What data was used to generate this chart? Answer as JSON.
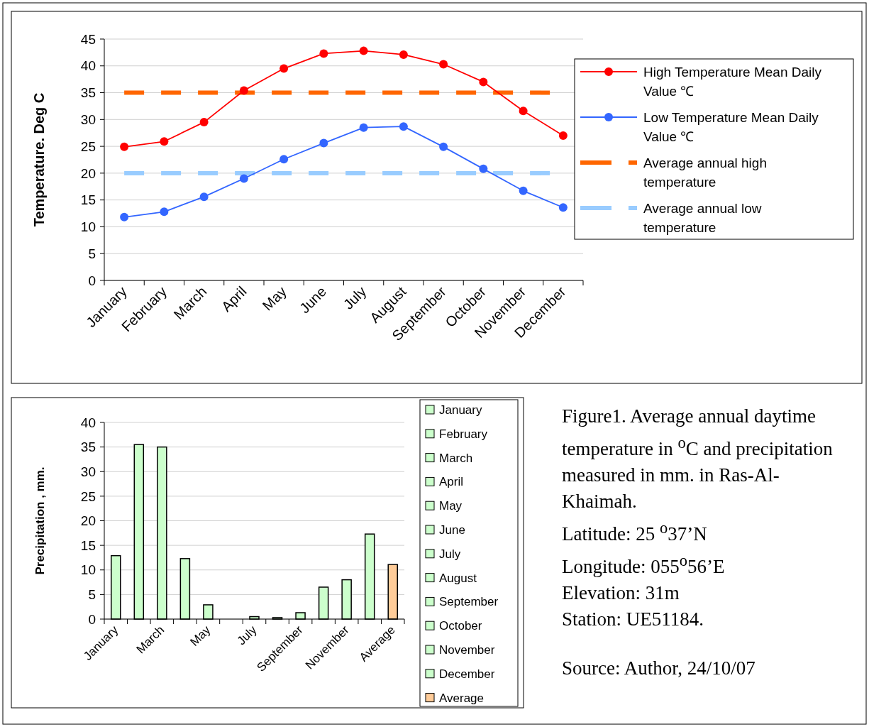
{
  "chart_data": [
    {
      "type": "line",
      "ylabel": "Temperature. Deg C",
      "categories": [
        "January",
        "February",
        "March",
        "April",
        "May",
        "June",
        "July",
        "August",
        "September",
        "October",
        "November",
        "December"
      ],
      "ylim": [
        0,
        45
      ],
      "yticks": [
        0,
        5,
        10,
        15,
        20,
        25,
        30,
        35,
        40,
        45
      ],
      "grid": "y",
      "legend": "right",
      "marker": "circle",
      "series": [
        {
          "name": "High Temperature Mean Daily Value  ℃",
          "color": "#ff0000",
          "values": [
            24.9,
            25.9,
            29.5,
            35.4,
            39.5,
            42.3,
            42.8,
            42.1,
            40.3,
            37.0,
            31.6,
            27.0
          ]
        },
        {
          "name": "Low  Temperature Mean Daily Value  ℃",
          "color": "#3366ff",
          "values": [
            11.8,
            12.8,
            15.6,
            19.0,
            22.6,
            25.6,
            28.5,
            28.7,
            24.9,
            20.8,
            16.7,
            13.6
          ]
        }
      ],
      "ref_lines": [
        {
          "axis": "y",
          "value": 35,
          "label": "Average annual high temperature",
          "color": "#ff6600",
          "line_style": "dashed"
        },
        {
          "axis": "y",
          "value": 20,
          "label": "Average annual low temperature",
          "color": "#99ccff",
          "line_style": "dashed"
        }
      ]
    },
    {
      "type": "bar",
      "ylabel": "Precipitation , mm.",
      "categories": [
        "January",
        null,
        "March",
        null,
        "May",
        null,
        "July",
        null,
        "September",
        null,
        "November",
        null,
        "Average"
      ],
      "ylim": [
        0,
        40
      ],
      "yticks": [
        0,
        5,
        10,
        15,
        20,
        25,
        30,
        35,
        40
      ],
      "grid": "y",
      "legend": "right",
      "series": [
        {
          "name": "January",
          "color": "#ccffcc",
          "values": [
            12.9,
            null,
            null,
            null,
            null,
            null,
            null,
            null,
            null,
            null,
            null,
            null,
            null
          ]
        },
        {
          "name": "February",
          "color": "#ccffcc",
          "values": [
            null,
            35.5,
            null,
            null,
            null,
            null,
            null,
            null,
            null,
            null,
            null,
            null,
            null
          ]
        },
        {
          "name": "March",
          "color": "#ccffcc",
          "values": [
            null,
            null,
            35.0,
            null,
            null,
            null,
            null,
            null,
            null,
            null,
            null,
            null,
            null
          ]
        },
        {
          "name": "April",
          "color": "#ccffcc",
          "values": [
            null,
            null,
            null,
            12.3,
            null,
            null,
            null,
            null,
            null,
            null,
            null,
            null,
            null
          ]
        },
        {
          "name": "May",
          "color": "#ccffcc",
          "values": [
            null,
            null,
            null,
            null,
            2.9,
            null,
            null,
            null,
            null,
            null,
            null,
            null,
            null
          ]
        },
        {
          "name": "June",
          "color": "#ccffcc",
          "values": [
            null,
            null,
            null,
            null,
            null,
            0,
            null,
            null,
            null,
            null,
            null,
            null,
            null
          ]
        },
        {
          "name": "July",
          "color": "#ccffcc",
          "values": [
            null,
            null,
            null,
            null,
            null,
            null,
            0.5,
            null,
            null,
            null,
            null,
            null,
            null
          ]
        },
        {
          "name": "August",
          "color": "#ccffcc",
          "values": [
            null,
            null,
            null,
            null,
            null,
            null,
            null,
            0.3,
            null,
            null,
            null,
            null,
            null
          ]
        },
        {
          "name": "September",
          "color": "#ccffcc",
          "values": [
            null,
            null,
            null,
            null,
            null,
            null,
            null,
            null,
            1.3,
            null,
            null,
            null,
            null
          ]
        },
        {
          "name": "October",
          "color": "#ccffcc",
          "values": [
            null,
            null,
            null,
            null,
            null,
            null,
            null,
            null,
            null,
            6.5,
            null,
            null,
            null
          ]
        },
        {
          "name": "November",
          "color": "#ccffcc",
          "values": [
            null,
            null,
            null,
            null,
            null,
            null,
            null,
            null,
            null,
            null,
            8.0,
            null,
            null
          ]
        },
        {
          "name": "December",
          "color": "#ccffcc",
          "values": [
            null,
            null,
            null,
            null,
            null,
            null,
            null,
            null,
            null,
            null,
            null,
            17.3,
            null
          ]
        },
        {
          "name": "Average",
          "color": "#ffcc99",
          "values": [
            null,
            null,
            null,
            null,
            null,
            null,
            null,
            null,
            null,
            null,
            null,
            null,
            11.1
          ]
        }
      ]
    },
    {
      "type": "other",
      "annotations": [
        "Figure1. Average annual daytime temperature in $^{o}$C and precipitation measured in mm. in Ras-Al-Khaimah.",
        "Latitude: 25 $^{o}$37’N",
        "Longitude: 055$^{o}$56’E",
        "Elevation: 31m",
        "Station: UE51184.",
        "Source: Author, 24/10/07"
      ]
    }
  ]
}
